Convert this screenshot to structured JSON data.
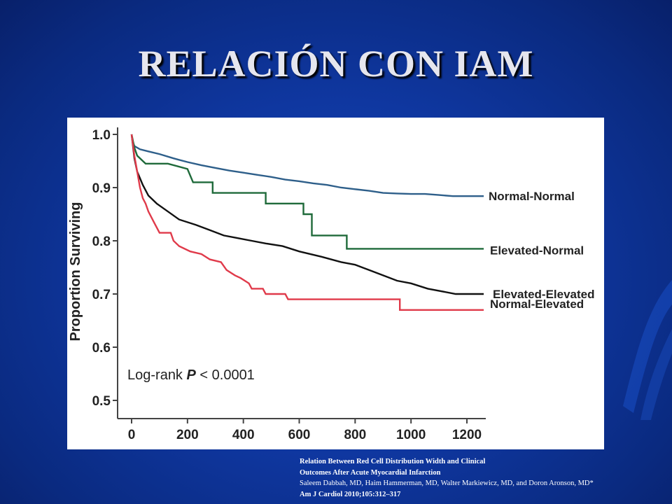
{
  "slide": {
    "title": "RELACIÓN CON IAM",
    "colors": {
      "background": "#0f37a0",
      "title": "#e6e6ee"
    }
  },
  "citation": {
    "line1": "Relation Between Red Cell Distribution Width and Clinical",
    "line2": "Outcomes After Acute Myocardial Infarction",
    "authors": "Saleem Dabbah, MD, Haim Hammerman, MD, Walter Markiewicz, MD, and Doron Aronson, MD*",
    "journal": "Am J Cardiol 2010;105:312–317"
  },
  "chart_data": {
    "type": "line",
    "subtype": "kaplan-meier",
    "title": "",
    "xlabel": "",
    "ylabel": "Proportion Surviving",
    "xlim": [
      0,
      1270
    ],
    "ylim": [
      0.47,
      1.02
    ],
    "x_ticks": [
      0,
      200,
      400,
      600,
      800,
      1000,
      1200
    ],
    "y_ticks": [
      0.5,
      0.6,
      0.7,
      0.8,
      0.9,
      1.0
    ],
    "x_tick_labels": [
      "0",
      "200",
      "400",
      "600",
      "800",
      "1000",
      "1200"
    ],
    "y_tick_labels": [
      "0.5",
      "0.6",
      "0.7",
      "0.8",
      "0.9",
      "1.0"
    ],
    "annotation": {
      "prefix": "Log-rank ",
      "italic": "P",
      "suffix": " < 0.0001"
    },
    "legend_placement": "right of curve ends",
    "series": [
      {
        "name": "Normal-Normal",
        "color": "#2e5f8a",
        "points": [
          [
            0,
            1.0
          ],
          [
            5,
            0.985
          ],
          [
            10,
            0.978
          ],
          [
            30,
            0.972
          ],
          [
            60,
            0.968
          ],
          [
            100,
            0.963
          ],
          [
            150,
            0.955
          ],
          [
            200,
            0.948
          ],
          [
            250,
            0.942
          ],
          [
            300,
            0.937
          ],
          [
            350,
            0.932
          ],
          [
            400,
            0.928
          ],
          [
            450,
            0.924
          ],
          [
            500,
            0.92
          ],
          [
            550,
            0.915
          ],
          [
            600,
            0.912
          ],
          [
            650,
            0.908
          ],
          [
            700,
            0.905
          ],
          [
            750,
            0.9
          ],
          [
            800,
            0.897
          ],
          [
            850,
            0.894
          ],
          [
            900,
            0.89
          ],
          [
            950,
            0.889
          ],
          [
            1000,
            0.888
          ],
          [
            1050,
            0.888
          ],
          [
            1100,
            0.886
          ],
          [
            1150,
            0.884
          ],
          [
            1200,
            0.884
          ],
          [
            1260,
            0.884
          ]
        ]
      },
      {
        "name": "Elevated-Normal",
        "color": "#1f6a3a",
        "points": [
          [
            0,
            1.0
          ],
          [
            10,
            0.975
          ],
          [
            20,
            0.96
          ],
          [
            50,
            0.945
          ],
          [
            130,
            0.945
          ],
          [
            200,
            0.935
          ],
          [
            220,
            0.91
          ],
          [
            290,
            0.91
          ],
          [
            290,
            0.89
          ],
          [
            480,
            0.89
          ],
          [
            480,
            0.87
          ],
          [
            615,
            0.87
          ],
          [
            615,
            0.85
          ],
          [
            645,
            0.85
          ],
          [
            645,
            0.81
          ],
          [
            770,
            0.81
          ],
          [
            770,
            0.785
          ],
          [
            1260,
            0.785
          ]
        ]
      },
      {
        "name": "Elevated-Elevated",
        "color": "#111111",
        "points": [
          [
            0,
            1.0
          ],
          [
            10,
            0.955
          ],
          [
            20,
            0.93
          ],
          [
            40,
            0.905
          ],
          [
            60,
            0.885
          ],
          [
            90,
            0.87
          ],
          [
            130,
            0.855
          ],
          [
            170,
            0.84
          ],
          [
            230,
            0.83
          ],
          [
            280,
            0.82
          ],
          [
            330,
            0.81
          ],
          [
            380,
            0.805
          ],
          [
            430,
            0.8
          ],
          [
            480,
            0.795
          ],
          [
            540,
            0.79
          ],
          [
            600,
            0.78
          ],
          [
            680,
            0.77
          ],
          [
            750,
            0.76
          ],
          [
            800,
            0.755
          ],
          [
            850,
            0.745
          ],
          [
            900,
            0.735
          ],
          [
            950,
            0.725
          ],
          [
            1000,
            0.72
          ],
          [
            1060,
            0.71
          ],
          [
            1160,
            0.7
          ],
          [
            1260,
            0.7
          ]
        ]
      },
      {
        "name": "Normal-Elevated",
        "color": "#e03a4a",
        "points": [
          [
            0,
            1.0
          ],
          [
            10,
            0.96
          ],
          [
            20,
            0.93
          ],
          [
            30,
            0.9
          ],
          [
            40,
            0.88
          ],
          [
            50,
            0.87
          ],
          [
            60,
            0.855
          ],
          [
            80,
            0.835
          ],
          [
            100,
            0.815
          ],
          [
            140,
            0.815
          ],
          [
            150,
            0.8
          ],
          [
            170,
            0.79
          ],
          [
            210,
            0.78
          ],
          [
            250,
            0.775
          ],
          [
            280,
            0.765
          ],
          [
            320,
            0.76
          ],
          [
            340,
            0.745
          ],
          [
            370,
            0.735
          ],
          [
            390,
            0.73
          ],
          [
            420,
            0.72
          ],
          [
            430,
            0.71
          ],
          [
            470,
            0.71
          ],
          [
            480,
            0.7
          ],
          [
            550,
            0.7
          ],
          [
            560,
            0.69
          ],
          [
            960,
            0.69
          ],
          [
            960,
            0.67
          ],
          [
            1260,
            0.67
          ]
        ]
      }
    ]
  }
}
